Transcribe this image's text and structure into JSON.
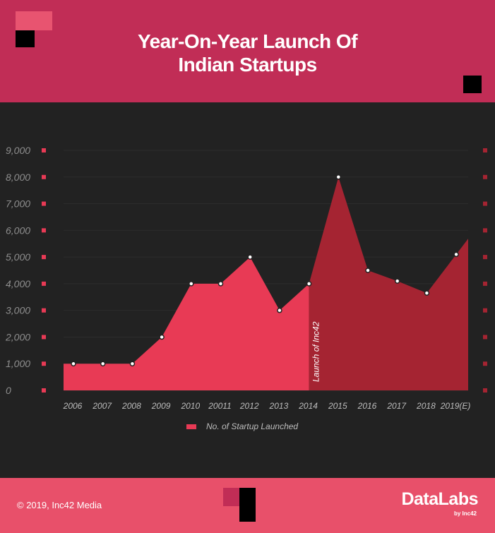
{
  "header": {
    "title": "Year-On-Year Launch Of\nIndian Startups"
  },
  "footer": {
    "copyright": "© 2019, Inc42 Media",
    "brand": "DataLabs",
    "brand_sub": "by Inc42"
  },
  "colors": {
    "header_bg": "#c12d56",
    "footer_bg": "#e8506a",
    "series_pre": "#e83a55",
    "series_post": "#a52432",
    "background": "#222222"
  },
  "chart_data": {
    "type": "area",
    "title": "Year-On-Year Launch Of Indian Startups",
    "categories": [
      "2006",
      "2007",
      "2008",
      "2009",
      "2010",
      "20011",
      "2012",
      "2013",
      "2014",
      "2015",
      "2016",
      "2017",
      "2018",
      "2019(E)"
    ],
    "series": [
      {
        "name": "No. of Startup Launched",
        "values": [
          1000,
          1000,
          1000,
          2000,
          4000,
          4000,
          5000,
          3000,
          4000,
          8000,
          4500,
          4100,
          3650,
          5100
        ]
      }
    ],
    "yticks": [
      "0",
      "1,000",
      "2,000",
      "3,000",
      "4,000",
      "5,000",
      "6,000",
      "7,000",
      "8,000",
      "9,000"
    ],
    "ylim": [
      0,
      9000
    ],
    "annotation": {
      "text": "Launch of Inc42",
      "at_category": "2014"
    },
    "legend_position": "bottom"
  }
}
